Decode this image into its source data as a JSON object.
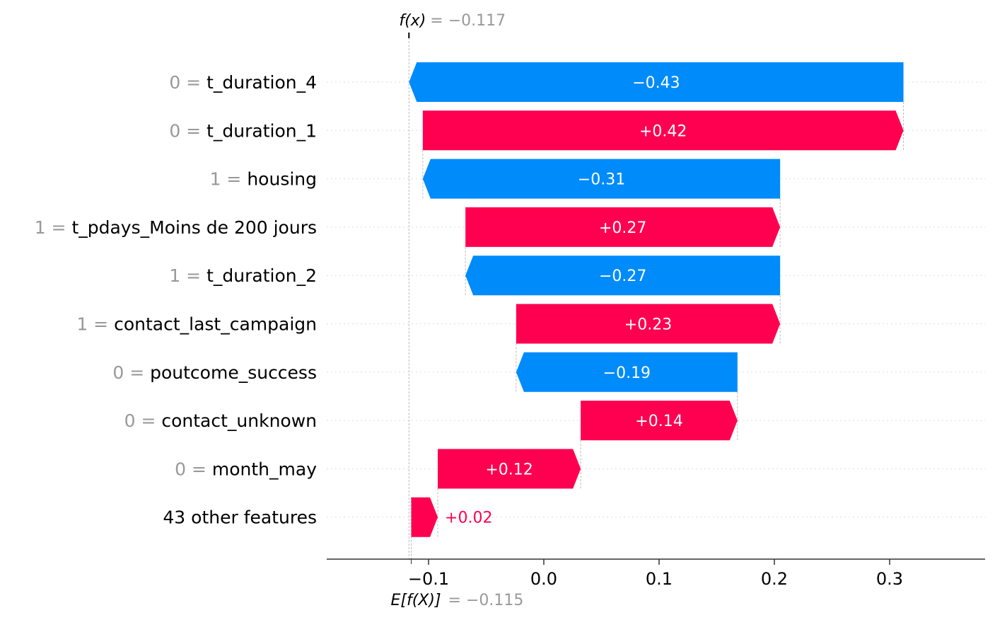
{
  "chart_data": {
    "type": "waterfall",
    "fx_label": "f(x)",
    "fx_value_text": "= −0.117",
    "fx_value": -0.117,
    "ex_label": "E[f(X)]",
    "ex_value_text": "= −0.115",
    "ex_value": -0.115,
    "xlim": [
      -0.19,
      0.385
    ],
    "xticks": [
      -0.1,
      0.0,
      0.1,
      0.2,
      0.3
    ],
    "xtick_labels": [
      "−0.1",
      "0.0",
      "0.1",
      "0.2",
      "0.3"
    ],
    "colors": {
      "positive": "#ff0051",
      "negative": "#008bfb"
    },
    "features": [
      {
        "value_text": "0 = ",
        "name": "t_duration_4",
        "start": 0.312,
        "end": -0.117,
        "label": "−0.43"
      },
      {
        "value_text": "0 = ",
        "name": "t_duration_1",
        "start": -0.105,
        "end": 0.312,
        "label": "+0.42"
      },
      {
        "value_text": "1 = ",
        "name": "housing",
        "start": 0.205,
        "end": -0.105,
        "label": "−0.31"
      },
      {
        "value_text": "1 = ",
        "name": "t_pdays_Moins de 200 jours",
        "start": -0.068,
        "end": 0.205,
        "label": "+0.27"
      },
      {
        "value_text": "1 = ",
        "name": "t_duration_2",
        "start": 0.205,
        "end": -0.068,
        "label": "−0.27"
      },
      {
        "value_text": "1 = ",
        "name": "contact_last_campaign",
        "start": -0.024,
        "end": 0.205,
        "label": "+0.23"
      },
      {
        "value_text": "0 = ",
        "name": "poutcome_success",
        "start": 0.168,
        "end": -0.024,
        "label": "−0.19"
      },
      {
        "value_text": "0 = ",
        "name": "contact_unknown",
        "start": 0.032,
        "end": 0.168,
        "label": "+0.14"
      },
      {
        "value_text": "0 = ",
        "name": "month_may",
        "start": -0.092,
        "end": 0.032,
        "label": "+0.12"
      },
      {
        "value_text": "",
        "name": "43 other features",
        "start": -0.115,
        "end": -0.092,
        "label": "+0.02"
      }
    ]
  }
}
